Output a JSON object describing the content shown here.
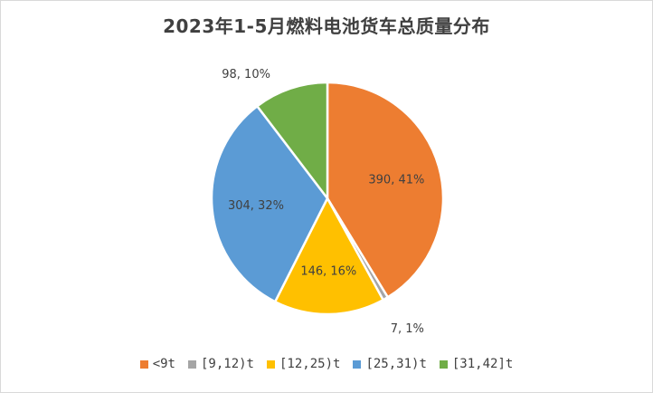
{
  "chart_data": {
    "type": "pie",
    "title": "2023年1-5月燃料电池货车总质量分布",
    "categories": [
      "<9t",
      "[9,12)t",
      "[12,25)t",
      "[25,31)t",
      "[31,42]t"
    ],
    "values": [
      390,
      7,
      146,
      304,
      98
    ],
    "percent_labels": [
      "390, 41%",
      "7, 1%",
      "146, 16%",
      "304, 32%",
      "98, 10%"
    ],
    "colors": [
      "#ED7D31",
      "#A5A5A5",
      "#FFC000",
      "#5B9BD5",
      "#70AD47"
    ],
    "legend_position": "bottom",
    "start_angle_deg": 0,
    "direction": "clockwise"
  }
}
